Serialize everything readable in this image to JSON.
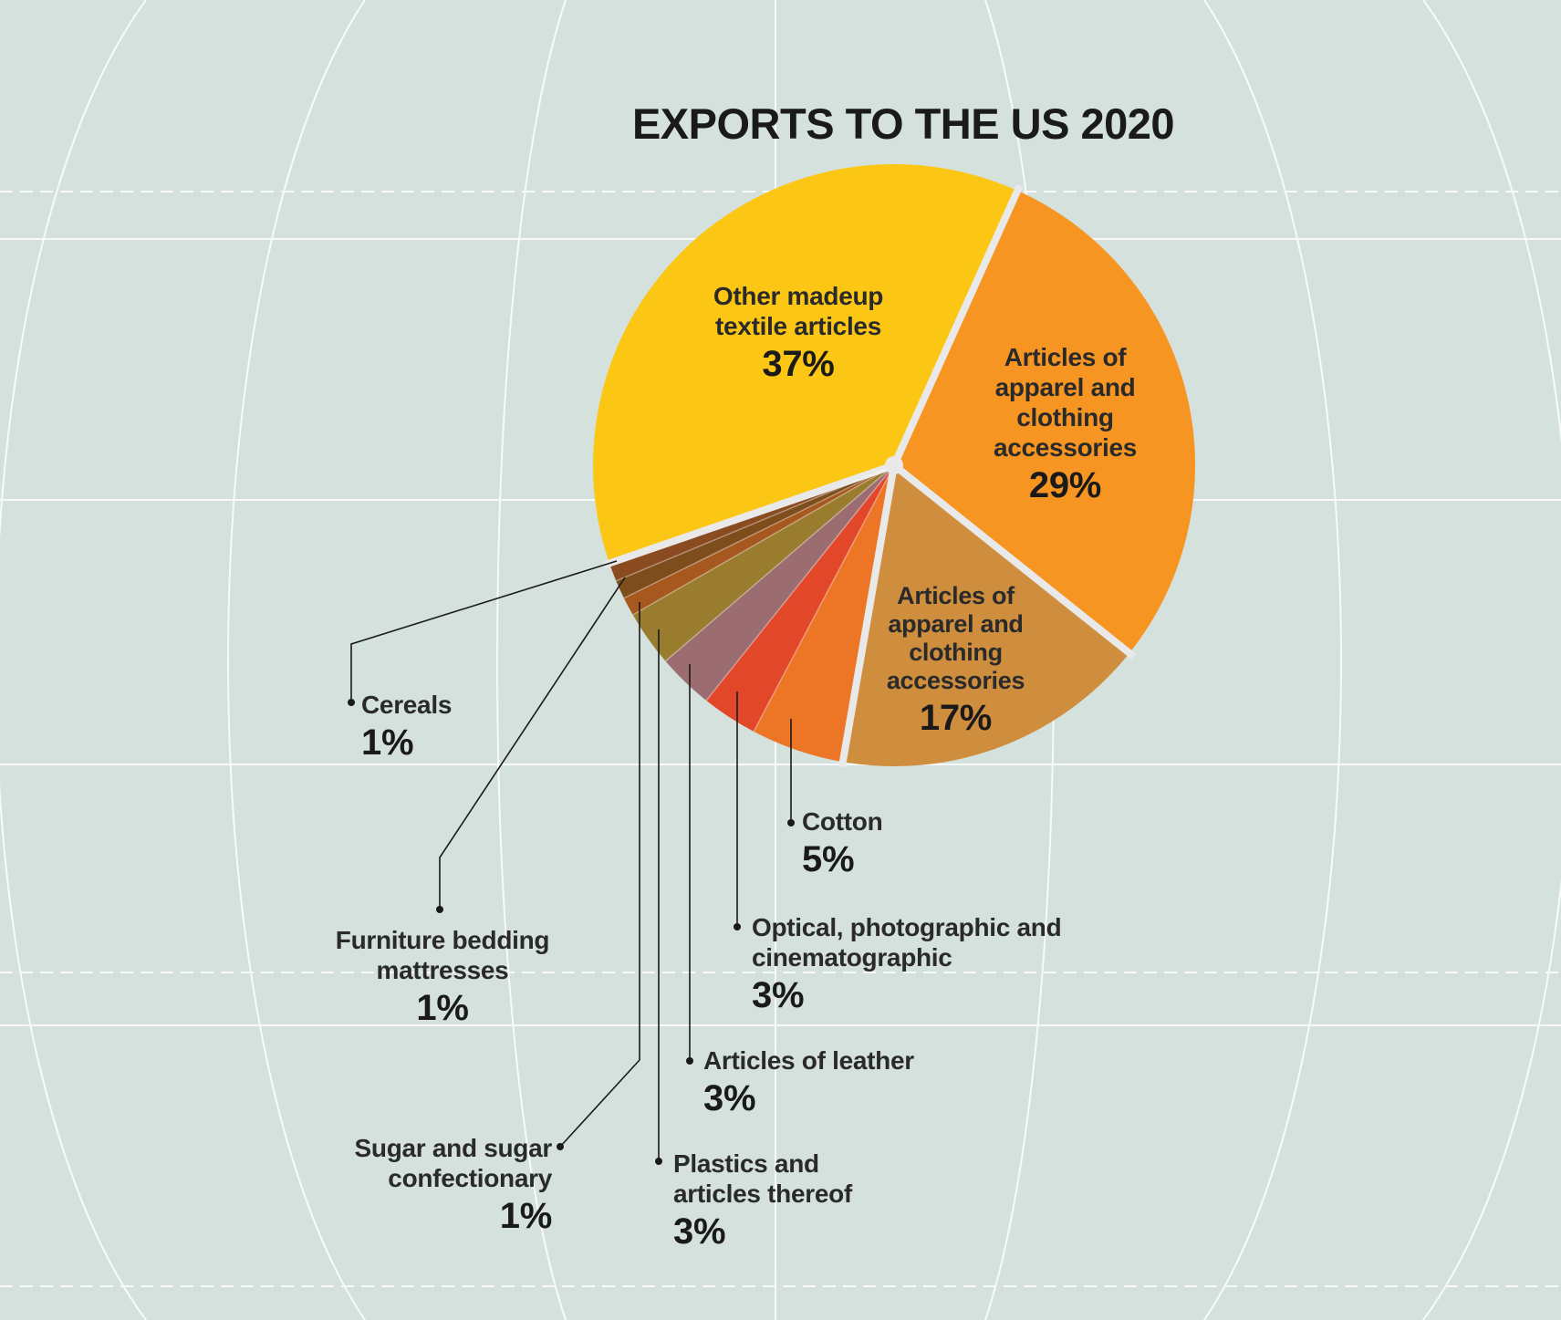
{
  "title": {
    "main": "EXPORTS TO THE US",
    "year": "2020"
  },
  "colors": {
    "background": "#d5e1dd",
    "grid": "#ffffff",
    "separator": "#e9e9e9"
  },
  "chart_data": {
    "type": "pie",
    "title": "EXPORTS TO THE US 2020",
    "slices": [
      {
        "label": "Other madeup textile articles",
        "value": 37,
        "value_label": "37%",
        "color": "#fcc614"
      },
      {
        "label": "Articles of apparel and clothing accessories",
        "value": 29,
        "value_label": "29%",
        "color": "#f79523"
      },
      {
        "label": "Articles of apparel and clothing accessories",
        "value": 17,
        "value_label": "17%",
        "color": "#cf8d3e"
      },
      {
        "label": "Cotton",
        "value": 5,
        "value_label": "5%",
        "color": "#ec7625"
      },
      {
        "label": "Optical, photographic and cinematographic",
        "value": 3,
        "value_label": "3%",
        "color": "#e2472a"
      },
      {
        "label": "Articles of leather",
        "value": 3,
        "value_label": "3%",
        "color": "#9c6d70"
      },
      {
        "label": "Plastics and articles thereof",
        "value": 3,
        "value_label": "3%",
        "color": "#9a7c2e"
      },
      {
        "label": "Sugar and sugar confectionary",
        "value": 1,
        "value_label": "1%",
        "color": "#a6581f"
      },
      {
        "label": "Furniture bedding mattresses",
        "value": 1,
        "value_label": "1%",
        "color": "#7e4d1c"
      },
      {
        "label": "Cereals",
        "value": 1,
        "value_label": "1%",
        "color": "#8a4b20"
      }
    ]
  },
  "labels": {
    "other_madeup": {
      "name": "Other madeup\ntextile articles",
      "pct": "37%"
    },
    "apparel_29": {
      "name": "Articles of\napparel and\nclothing\naccessories",
      "pct": "29%"
    },
    "apparel_17": {
      "name": "Articles of\napparel and\nclothing\naccessories",
      "pct": "17%"
    },
    "cotton": {
      "name": "Cotton",
      "pct": "5%"
    },
    "optical": {
      "name": "Optical, photographic and\ncinematographic",
      "pct": "3%"
    },
    "leather": {
      "name": "Articles of leather",
      "pct": "3%"
    },
    "plastics": {
      "name": "Plastics and\narticles thereof",
      "pct": "3%"
    },
    "sugar": {
      "name": "Sugar and sugar\nconfectionary",
      "pct": "1%"
    },
    "furniture": {
      "name": "Furniture bedding\nmattresses",
      "pct": "1%"
    },
    "cereals": {
      "name": "Cereals",
      "pct": "1%"
    }
  }
}
